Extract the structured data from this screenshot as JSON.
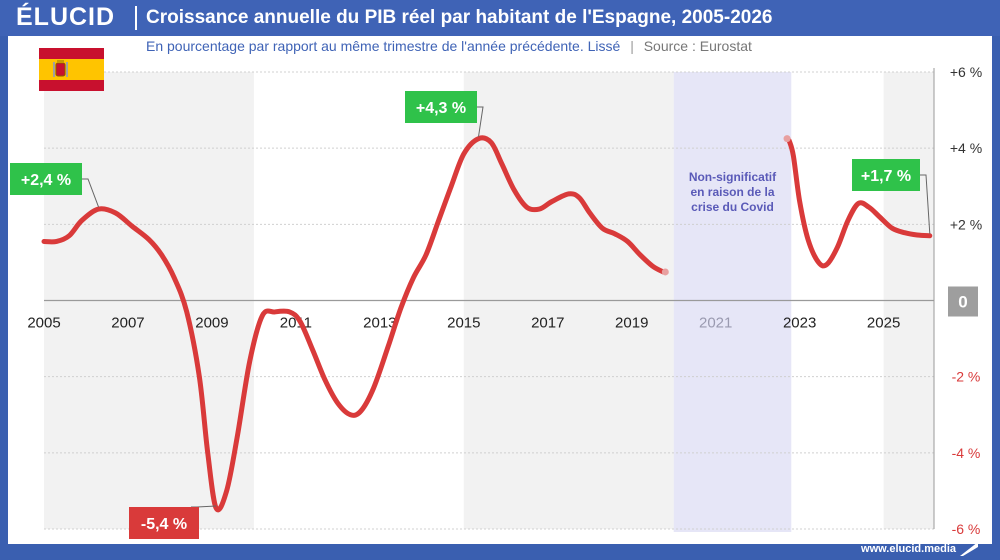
{
  "header": {
    "logo": "ÉLUCID",
    "title": "Croissance annuelle du PIB réel par habitant de l'Espagne, 2005-2026"
  },
  "subtitle": {
    "text": "En pourcentage par rapport au même trimestre de l'année précédente. Lissé",
    "separator": "|",
    "source": "Source : Eurostat"
  },
  "footer": {
    "url": "www.elucid.media"
  },
  "colors": {
    "line": "#d93a3a",
    "positive_label": "#2fc24a",
    "negative_label": "#d93a3a",
    "covid_band": "#e6e6f7",
    "shade": "#f2f2f2",
    "header": "#3f63b6",
    "zero_box": "#9e9e9e"
  },
  "chart_data": {
    "type": "line",
    "title": "Croissance annuelle du PIB réel par habitant de l'Espagne, 2005-2026",
    "xlim": [
      2005,
      2026.2
    ],
    "ylim": [
      -6,
      6
    ],
    "y_ticks": [
      {
        "value": 6,
        "label": "+6 %"
      },
      {
        "value": 4,
        "label": "+4 %"
      },
      {
        "value": 2,
        "label": "+2 %"
      },
      {
        "value": 0,
        "label": "0"
      },
      {
        "value": -2,
        "label": "-2 %"
      },
      {
        "value": -4,
        "label": "-4 %"
      },
      {
        "value": -6,
        "label": "-6 %"
      }
    ],
    "x_ticks": [
      {
        "value": 2005,
        "label": "2005",
        "muted": false
      },
      {
        "value": 2007,
        "label": "2007",
        "muted": false
      },
      {
        "value": 2009,
        "label": "2009",
        "muted": false
      },
      {
        "value": 2011,
        "label": "2011",
        "muted": false
      },
      {
        "value": 2013,
        "label": "2013",
        "muted": false
      },
      {
        "value": 2015,
        "label": "2015",
        "muted": false
      },
      {
        "value": 2017,
        "label": "2017",
        "muted": false
      },
      {
        "value": 2019,
        "label": "2019",
        "muted": false
      },
      {
        "value": 2021,
        "label": "2021",
        "muted": true
      },
      {
        "value": 2023,
        "label": "2023",
        "muted": false
      },
      {
        "value": 2025,
        "label": "2025",
        "muted": false
      }
    ],
    "grid": true,
    "shaded_periods": [
      [
        2005,
        2010
      ],
      [
        2015,
        2020
      ],
      [
        2025,
        2026.2
      ]
    ],
    "covid_period": {
      "start": 2020,
      "end": 2022.8,
      "text": [
        "Non-significatif",
        "en raison de la",
        "crise du Covid"
      ]
    },
    "series": [
      {
        "segments": [
          [
            [
              2005.0,
              1.55
            ],
            [
              2005.3,
              1.55
            ],
            [
              2005.6,
              1.7
            ],
            [
              2005.9,
              2.1
            ],
            [
              2006.3,
              2.4
            ],
            [
              2006.7,
              2.3
            ],
            [
              2007.1,
              1.95
            ],
            [
              2007.5,
              1.6
            ],
            [
              2007.8,
              1.2
            ],
            [
              2008.1,
              0.6
            ],
            [
              2008.4,
              -0.3
            ],
            [
              2008.7,
              -2.0
            ],
            [
              2008.9,
              -4.0
            ],
            [
              2009.1,
              -5.45
            ],
            [
              2009.35,
              -5.0
            ],
            [
              2009.6,
              -3.6
            ],
            [
              2009.9,
              -1.6
            ],
            [
              2010.2,
              -0.4
            ],
            [
              2010.5,
              -0.3
            ],
            [
              2010.85,
              -0.3
            ],
            [
              2011.1,
              -0.55
            ],
            [
              2011.4,
              -1.3
            ],
            [
              2011.7,
              -2.1
            ],
            [
              2012.0,
              -2.7
            ],
            [
              2012.3,
              -3.0
            ],
            [
              2012.55,
              -2.9
            ],
            [
              2012.85,
              -2.3
            ],
            [
              2013.2,
              -1.2
            ],
            [
              2013.5,
              -0.2
            ],
            [
              2013.8,
              0.6
            ],
            [
              2014.1,
              1.2
            ],
            [
              2014.4,
              2.1
            ],
            [
              2014.7,
              3.0
            ],
            [
              2015.0,
              3.85
            ],
            [
              2015.35,
              4.25
            ],
            [
              2015.65,
              4.15
            ],
            [
              2015.9,
              3.6
            ],
            [
              2016.2,
              2.9
            ],
            [
              2016.5,
              2.45
            ],
            [
              2016.8,
              2.4
            ],
            [
              2017.1,
              2.6
            ],
            [
              2017.5,
              2.8
            ],
            [
              2017.75,
              2.7
            ],
            [
              2018.0,
              2.3
            ],
            [
              2018.3,
              1.9
            ],
            [
              2018.6,
              1.75
            ],
            [
              2018.9,
              1.55
            ],
            [
              2019.2,
              1.2
            ],
            [
              2019.5,
              0.9
            ],
            [
              2019.75,
              0.75
            ]
          ],
          [
            [
              2022.75,
              4.2
            ],
            [
              2022.85,
              3.8
            ],
            [
              2023.0,
              2.6
            ],
            [
              2023.2,
              1.6
            ],
            [
              2023.45,
              1.0
            ],
            [
              2023.65,
              0.95
            ],
            [
              2023.9,
              1.4
            ],
            [
              2024.15,
              2.1
            ],
            [
              2024.4,
              2.55
            ],
            [
              2024.65,
              2.45
            ],
            [
              2024.9,
              2.2
            ],
            [
              2025.2,
              1.9
            ],
            [
              2025.5,
              1.78
            ],
            [
              2025.8,
              1.72
            ],
            [
              2026.1,
              1.7
            ]
          ]
        ],
        "faded_points": [
          [
            2019.8,
            0.75
          ],
          [
            2022.7,
            4.25
          ]
        ]
      }
    ],
    "annotations": [
      {
        "text": "+2,4 %",
        "x": 2006.3,
        "y": 2.4,
        "kind": "positive"
      },
      {
        "text": "-5,4 %",
        "x": 2009.1,
        "y": -5.45,
        "kind": "negative"
      },
      {
        "text": "+4,3 %",
        "x": 2015.35,
        "y": 4.25,
        "kind": "positive"
      },
      {
        "text": "+1,7 %",
        "x": 2026.1,
        "y": 1.7,
        "kind": "positive"
      }
    ]
  }
}
